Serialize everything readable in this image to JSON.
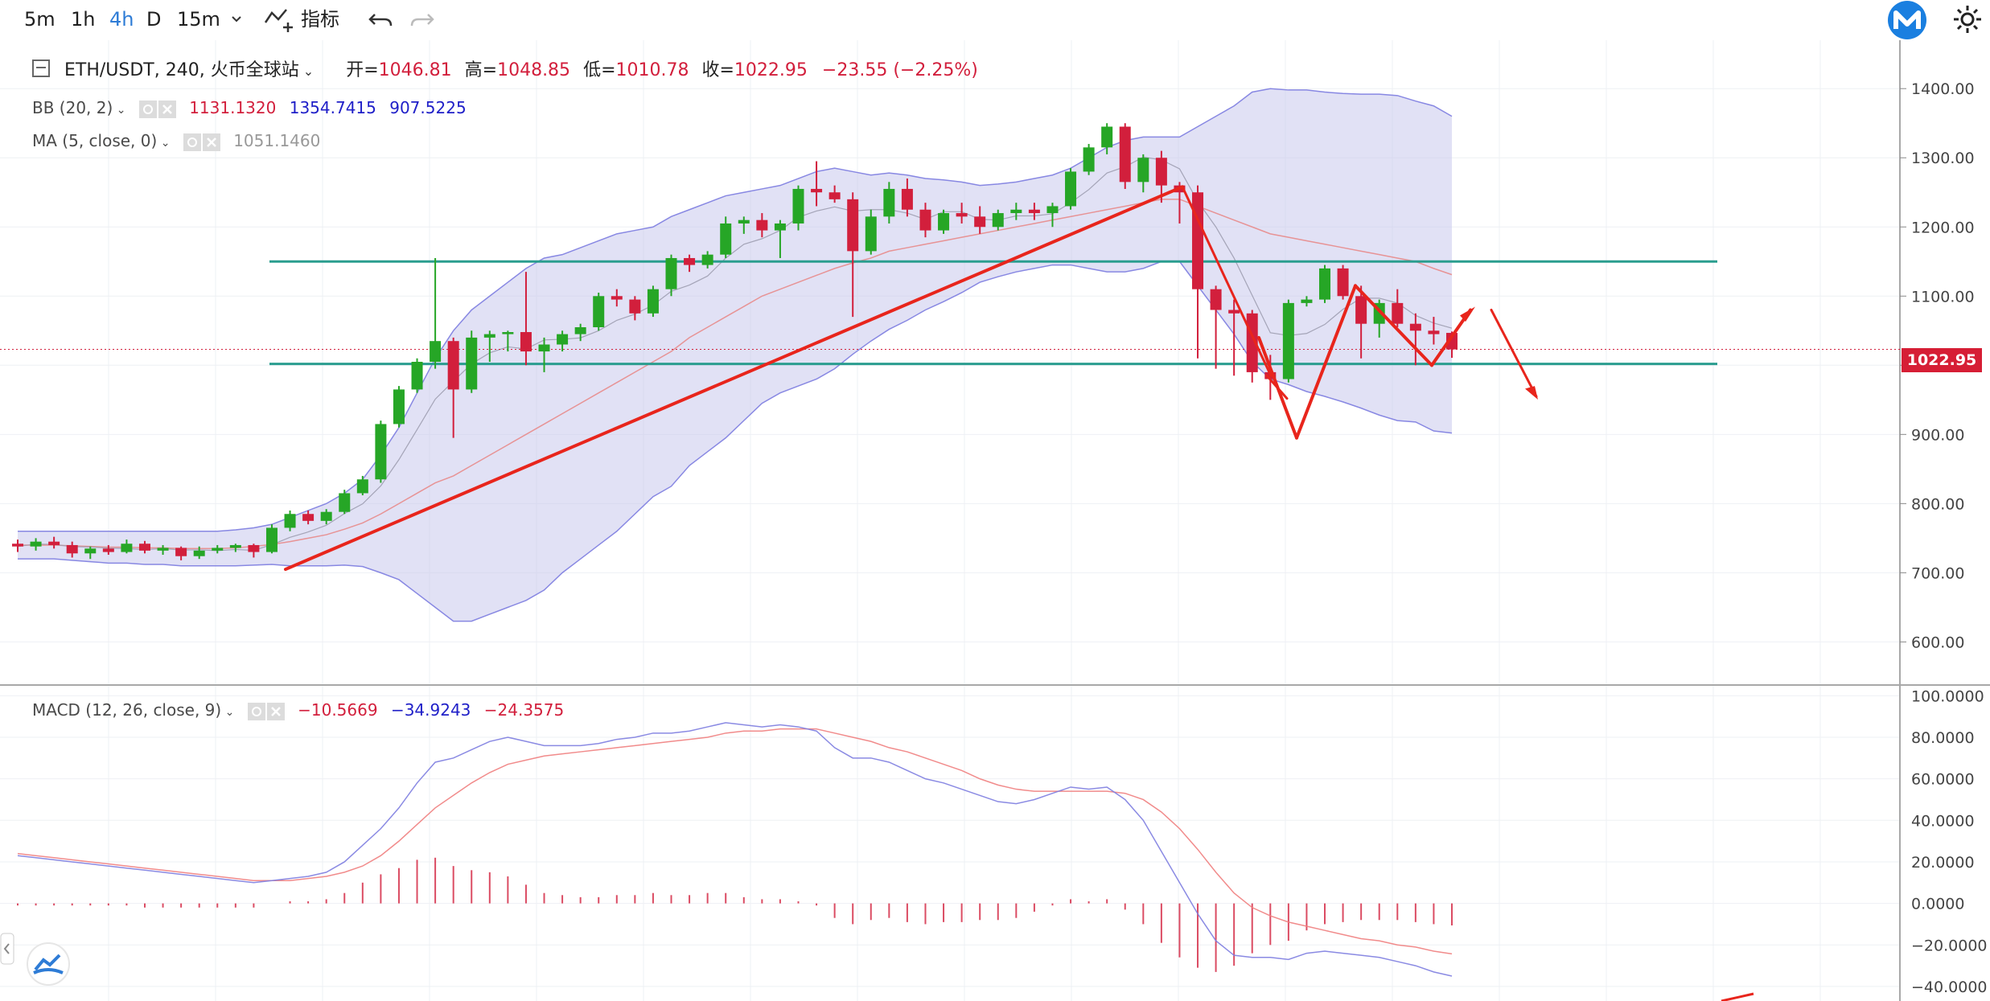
{
  "toolbar": {
    "intervals": [
      "5m",
      "1h",
      "4h",
      "D",
      "15m"
    ],
    "active_interval": "4h",
    "indicators_label": "指标"
  },
  "header": {
    "symbol": "ETH/USDT, 240, 火币全球站",
    "open_label": "开=",
    "open": "1046.81",
    "high_label": "高=",
    "high": "1048.85",
    "low_label": "低=",
    "low": "1010.78",
    "close_label": "收=",
    "close": "1022.95",
    "change": "−23.55 (−2.25%)"
  },
  "indicators": {
    "bb": {
      "label": "BB (20, 2)",
      "v1": "1131.1320",
      "v2": "1354.7415",
      "v3": "907.5225"
    },
    "ma": {
      "label": "MA (5, close, 0)",
      "v1": "1051.1460"
    },
    "macd": {
      "label": "MACD (12, 26, close, 9)",
      "v1": "−10.5669",
      "v2": "−34.9243",
      "v3": "−24.3575"
    }
  },
  "price_tag": "1022.95",
  "colors": {
    "up": "#26a626",
    "down": "#d21f3c",
    "band": "#7c7ce0",
    "band_fill": "#c9c9ec",
    "ma": "#e88b8b",
    "macd_line": "#7d7de0",
    "signal_line": "#f07e7e",
    "hline": "#2a9d8f",
    "annot": "#e8251c",
    "accent": "#2e7cd6"
  },
  "chart_data": [
    {
      "type": "candlestick",
      "ylim": [
        540,
        1470
      ],
      "yticks": [
        "1400.00",
        "1300.00",
        "1200.00",
        "1100.00",
        "1000.00",
        "900.00",
        "800.00",
        "700.00",
        "600.00"
      ],
      "candles": [
        [
          742,
          748,
          730,
          738
        ],
        [
          738,
          750,
          732,
          745
        ],
        [
          745,
          752,
          735,
          740
        ],
        [
          740,
          745,
          722,
          728
        ],
        [
          728,
          738,
          720,
          735
        ],
        [
          735,
          740,
          726,
          730
        ],
        [
          730,
          748,
          728,
          742
        ],
        [
          742,
          746,
          728,
          732
        ],
        [
          732,
          740,
          726,
          736
        ],
        [
          736,
          738,
          718,
          724
        ],
        [
          724,
          738,
          720,
          732
        ],
        [
          732,
          740,
          728,
          736
        ],
        [
          736,
          742,
          730,
          740
        ],
        [
          740,
          742,
          722,
          730
        ],
        [
          730,
          770,
          728,
          765
        ],
        [
          765,
          790,
          760,
          785
        ],
        [
          785,
          790,
          770,
          775
        ],
        [
          775,
          792,
          770,
          788
        ],
        [
          788,
          820,
          785,
          815
        ],
        [
          815,
          840,
          812,
          835
        ],
        [
          835,
          920,
          830,
          915
        ],
        [
          915,
          970,
          910,
          965
        ],
        [
          965,
          1010,
          960,
          1005
        ],
        [
          1005,
          1155,
          995,
          1035
        ],
        [
          1035,
          1040,
          895,
          965
        ],
        [
          965,
          1050,
          960,
          1040
        ],
        [
          1040,
          1050,
          1005,
          1045
        ],
        [
          1045,
          1050,
          1020,
          1048
        ],
        [
          1048,
          1135,
          1000,
          1020
        ],
        [
          1020,
          1040,
          990,
          1030
        ],
        [
          1030,
          1050,
          1020,
          1045
        ],
        [
          1045,
          1060,
          1035,
          1055
        ],
        [
          1055,
          1105,
          1050,
          1100
        ],
        [
          1100,
          1110,
          1085,
          1095
        ],
        [
          1095,
          1100,
          1065,
          1075
        ],
        [
          1075,
          1115,
          1070,
          1110
        ],
        [
          1110,
          1160,
          1100,
          1155
        ],
        [
          1155,
          1160,
          1135,
          1145
        ],
        [
          1145,
          1165,
          1140,
          1160
        ],
        [
          1160,
          1215,
          1155,
          1205
        ],
        [
          1205,
          1215,
          1190,
          1210
        ],
        [
          1210,
          1220,
          1185,
          1195
        ],
        [
          1195,
          1210,
          1155,
          1205
        ],
        [
          1205,
          1260,
          1195,
          1255
        ],
        [
          1255,
          1295,
          1230,
          1250
        ],
        [
          1250,
          1260,
          1235,
          1240
        ],
        [
          1240,
          1250,
          1070,
          1165
        ],
        [
          1165,
          1225,
          1160,
          1215
        ],
        [
          1215,
          1265,
          1205,
          1255
        ],
        [
          1255,
          1270,
          1215,
          1225
        ],
        [
          1225,
          1235,
          1185,
          1195
        ],
        [
          1195,
          1225,
          1190,
          1220
        ],
        [
          1220,
          1235,
          1205,
          1215
        ],
        [
          1215,
          1230,
          1190,
          1200
        ],
        [
          1200,
          1225,
          1195,
          1220
        ],
        [
          1220,
          1235,
          1210,
          1225
        ],
        [
          1225,
          1235,
          1210,
          1220
        ],
        [
          1220,
          1235,
          1200,
          1230
        ],
        [
          1230,
          1285,
          1225,
          1280
        ],
        [
          1280,
          1320,
          1275,
          1315
        ],
        [
          1315,
          1350,
          1305,
          1345
        ],
        [
          1345,
          1350,
          1255,
          1265
        ],
        [
          1265,
          1305,
          1250,
          1300
        ],
        [
          1300,
          1310,
          1235,
          1260
        ],
        [
          1260,
          1265,
          1205,
          1250
        ],
        [
          1250,
          1260,
          1010,
          1110
        ],
        [
          1110,
          1115,
          995,
          1080
        ],
        [
          1080,
          1095,
          985,
          1075
        ],
        [
          1075,
          1080,
          975,
          990
        ],
        [
          990,
          1015,
          950,
          980
        ],
        [
          980,
          1095,
          975,
          1090
        ],
        [
          1090,
          1100,
          1085,
          1095
        ],
        [
          1095,
          1145,
          1090,
          1140
        ],
        [
          1140,
          1145,
          1095,
          1100
        ],
        [
          1100,
          1115,
          1010,
          1060
        ],
        [
          1060,
          1095,
          1040,
          1090
        ],
        [
          1090,
          1110,
          1055,
          1060
        ],
        [
          1060,
          1075,
          1000,
          1050
        ],
        [
          1050,
          1070,
          1030,
          1045
        ],
        [
          1046.81,
          1048.85,
          1010.78,
          1022.95
        ]
      ],
      "bb_upper": [
        760,
        760,
        760,
        760,
        760,
        760,
        760,
        760,
        760,
        760,
        760,
        760,
        762,
        765,
        770,
        780,
        790,
        800,
        815,
        835,
        870,
        910,
        960,
        1010,
        1050,
        1080,
        1100,
        1120,
        1140,
        1155,
        1160,
        1170,
        1180,
        1190,
        1195,
        1200,
        1215,
        1225,
        1235,
        1245,
        1250,
        1255,
        1260,
        1270,
        1280,
        1285,
        1280,
        1275,
        1278,
        1275,
        1270,
        1268,
        1265,
        1260,
        1262,
        1265,
        1270,
        1275,
        1285,
        1300,
        1315,
        1325,
        1330,
        1330,
        1330,
        1345,
        1360,
        1375,
        1395,
        1400,
        1398,
        1398,
        1395,
        1393,
        1392,
        1392,
        1390,
        1382,
        1375,
        1360
      ],
      "bb_middle": [
        740,
        740,
        740,
        739,
        738,
        737,
        737,
        736,
        736,
        735,
        735,
        735,
        736,
        738,
        741,
        745,
        750,
        755,
        763,
        772,
        785,
        800,
        815,
        830,
        840,
        855,
        870,
        885,
        900,
        915,
        930,
        945,
        960,
        975,
        990,
        1005,
        1020,
        1040,
        1055,
        1070,
        1085,
        1100,
        1110,
        1120,
        1130,
        1140,
        1148,
        1155,
        1165,
        1170,
        1175,
        1180,
        1185,
        1190,
        1195,
        1200,
        1205,
        1210,
        1215,
        1220,
        1225,
        1230,
        1235,
        1240,
        1240,
        1230,
        1220,
        1210,
        1200,
        1190,
        1185,
        1180,
        1175,
        1170,
        1165,
        1160,
        1155,
        1150,
        1140,
        1131
      ]
    },
    {
      "type": "macd",
      "ylim": [
        -47,
        104
      ],
      "yticks": [
        "100.0000",
        "80.0000",
        "60.0000",
        "40.0000",
        "20.0000",
        "0.0000",
        "−20.0000",
        "−40.0000"
      ],
      "macd": [
        23,
        22,
        21,
        20,
        19,
        18,
        17,
        16,
        15,
        14,
        13,
        12,
        11,
        10,
        11,
        12,
        13,
        15,
        20,
        28,
        36,
        46,
        58,
        68,
        70,
        74,
        78,
        80,
        78,
        76,
        76,
        76,
        77,
        79,
        80,
        82,
        82,
        83,
        85,
        87,
        86,
        85,
        86,
        85,
        83,
        75,
        70,
        70,
        68,
        64,
        60,
        58,
        55,
        52,
        49,
        48,
        50,
        53,
        56,
        55,
        56,
        50,
        40,
        25,
        10,
        -5,
        -18,
        -25,
        -26,
        -26,
        -27,
        -24,
        -23,
        -24,
        -25,
        -26,
        -28,
        -30,
        -33,
        -35
      ],
      "signal": [
        24,
        23,
        22,
        21,
        20,
        19,
        18,
        17,
        16,
        15,
        14,
        13,
        12,
        11,
        11,
        11,
        12,
        13,
        15,
        18,
        23,
        30,
        38,
        46,
        52,
        58,
        63,
        67,
        69,
        71,
        72,
        73,
        74,
        75,
        76,
        77,
        78,
        79,
        80,
        82,
        83,
        83,
        84,
        84,
        84,
        82,
        80,
        78,
        75,
        73,
        70,
        67,
        64,
        60,
        57,
        55,
        54,
        54,
        54,
        54,
        54,
        53,
        50,
        44,
        36,
        26,
        15,
        5,
        -2,
        -6,
        -9,
        -11,
        -13,
        -15,
        -17,
        -18,
        -20,
        -21,
        -23,
        -24.3
      ],
      "hist": [
        -1,
        -1,
        -1,
        -1,
        -1,
        -1,
        -1,
        -2,
        -2,
        -2,
        -2,
        -2,
        -2,
        -2,
        0,
        1,
        1,
        2,
        5,
        10,
        14,
        17,
        21,
        22,
        18,
        16,
        15,
        13,
        9,
        5,
        4,
        3,
        3,
        4,
        4,
        5,
        4,
        4,
        5,
        5,
        3,
        2,
        2,
        1,
        -1,
        -7,
        -10,
        -8,
        -7,
        -9,
        -10,
        -9,
        -9,
        -8,
        -8,
        -7,
        -4,
        -1,
        2,
        1,
        2,
        -3,
        -10,
        -19,
        -26,
        -31,
        -33,
        -30,
        -24,
        -20,
        -18,
        -13,
        -10,
        -9,
        -8,
        -8,
        -8,
        -9,
        -10,
        -10.6
      ]
    }
  ]
}
